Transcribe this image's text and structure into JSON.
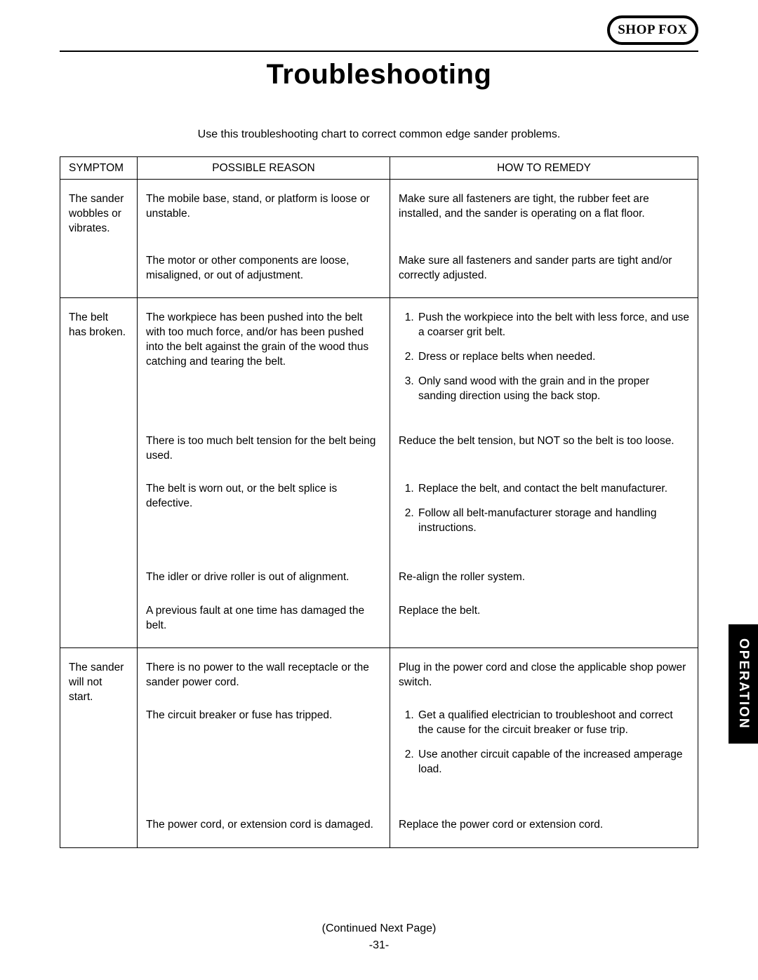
{
  "brand": {
    "logo_text": "SHOP FOX"
  },
  "page": {
    "title": "Troubleshooting",
    "intro": "Use this troubleshooting chart to correct common edge sander problems.",
    "continued": "(Continued Next Page)",
    "page_number": "-31-",
    "side_tab": "OPERATION"
  },
  "table": {
    "headers": {
      "symptom": "SYMPTOM",
      "reason": "POSSIBLE REASON",
      "remedy": "HOW TO REMEDY"
    },
    "rows": [
      {
        "symptom": "The sander wobbles or vibrates.",
        "pairs": [
          {
            "reason": "The mobile base, stand, or platform is loose or unstable.",
            "remedy": "Make sure all fasteners are tight, the rubber feet are installed, and the sander is operating on a flat floor.",
            "remedy_type": "text",
            "reason_h": 62,
            "remedy_h": 62
          },
          {
            "reason": "The motor or other components are loose, misaligned, or out of adjustment.",
            "remedy": "Make sure all fasteners and sander parts are tight and/or correctly adjusted.",
            "remedy_type": "text",
            "reason_h": 42,
            "remedy_h": 42
          }
        ]
      },
      {
        "symptom": "The belt has broken.",
        "pairs": [
          {
            "reason": "The workpiece has been pushed into the belt with too much force, and/or has been pushed into the belt against the grain of the wood thus catching and tearing the belt.",
            "remedy_type": "list",
            "remedy_items": [
              "Push the workpiece into the belt with less force, and use a coarser grit belt.",
              "Dress or replace belts when needed.",
              "Only sand wood with the grain and in the proper sanding direction using the back stop."
            ],
            "reason_h": 150,
            "remedy_h": 150
          },
          {
            "reason": "There is too much belt tension for the belt being used.",
            "remedy": "Reduce the belt tension, but NOT so the belt is too loose.",
            "remedy_type": "text",
            "reason_h": 42,
            "remedy_h": 42
          },
          {
            "reason": "The belt is worn out, or the belt splice is defective.",
            "remedy_type": "list",
            "remedy_items": [
              "Replace the belt, and contact the belt manufacturer.",
              "Follow all belt-manufacturer storage and handling instructions."
            ],
            "reason_h": 100,
            "remedy_h": 100
          },
          {
            "reason": "The idler or drive roller is out of alignment.",
            "remedy": "Re-align the roller system.",
            "remedy_type": "text",
            "reason_h": 22,
            "remedy_h": 22
          },
          {
            "reason": "A previous fault at one time has damaged the belt.",
            "remedy": "Replace the belt.",
            "remedy_type": "text",
            "reason_h": 42,
            "remedy_h": 42
          }
        ]
      },
      {
        "symptom": "The sander will not start.",
        "pairs": [
          {
            "reason": "There is no power to the wall receptacle or the sander power cord.",
            "remedy": "Plug in the power cord and close the applicable shop power switch.",
            "remedy_type": "text",
            "reason_h": 42,
            "remedy_h": 42
          },
          {
            "reason": "The circuit breaker or fuse has tripped.",
            "remedy_type": "list",
            "remedy_items": [
              "Get a qualified electrician to troubleshoot and correct the cause for the circuit breaker or fuse trip.",
              "Use another circuit capable of the increased amperage load."
            ],
            "reason_h": 130,
            "remedy_h": 130
          },
          {
            "reason": "The power cord, or extension cord is damaged.",
            "remedy": "Replace the power cord or extension cord.",
            "remedy_type": "text",
            "reason_h": 22,
            "remedy_h": 22
          }
        ]
      }
    ]
  }
}
